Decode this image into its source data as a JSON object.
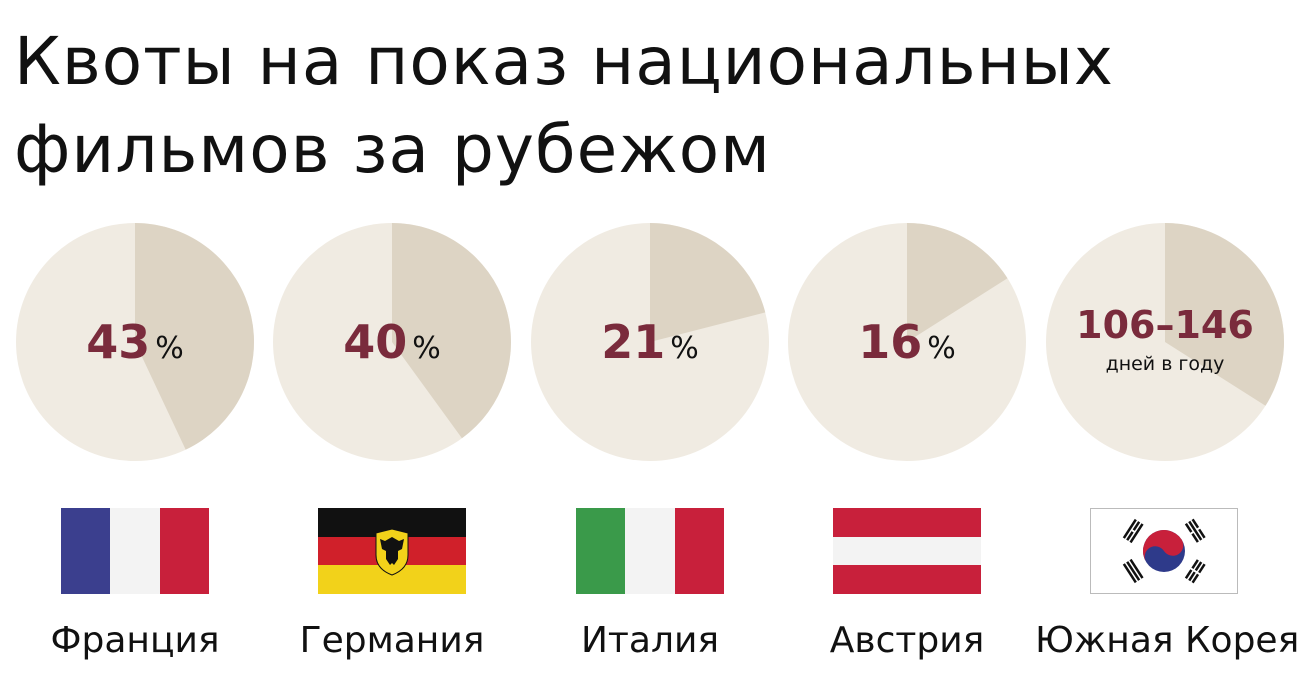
{
  "title": {
    "line1": "Квоты на показ национальных",
    "line2": "фильмов за рубежом"
  },
  "colors": {
    "pie_background": "#f0ebe2",
    "pie_share": "#ddd4c4",
    "value_text": "#7a2b3c",
    "france": [
      "#3b3f8e",
      "#f3f3f3",
      "#c8203b"
    ],
    "germany": [
      "#111111",
      "#d0202a",
      "#f2d21a"
    ],
    "italy": [
      "#3a9a4a",
      "#f3f3f3",
      "#c8203b"
    ],
    "austria": [
      "#c8203b",
      "#f3f3f3",
      "#c8203b"
    ],
    "korea_red": "#c8203b",
    "korea_blue": "#2e3a8a"
  },
  "chart_data": {
    "type": "pie",
    "series": [
      {
        "label": "Франция",
        "value": 43,
        "value_text": "43",
        "unit": "%",
        "flag": "france-flag"
      },
      {
        "label": "Германия",
        "value": 40,
        "value_text": "40",
        "unit": "%",
        "flag": "germany-flag"
      },
      {
        "label": "Италия",
        "value": 21,
        "value_text": "21",
        "unit": "%",
        "flag": "italy-flag"
      },
      {
        "label": "Австрия",
        "value": 16,
        "value_text": "16",
        "unit": "%",
        "flag": "austria-flag"
      },
      {
        "label": "Южная Корея",
        "value": [
          106,
          146
        ],
        "share_estimate": 0.34,
        "value_text": "106–146",
        "unit": "дней в году",
        "flag": "south-korea-flag"
      }
    ]
  }
}
